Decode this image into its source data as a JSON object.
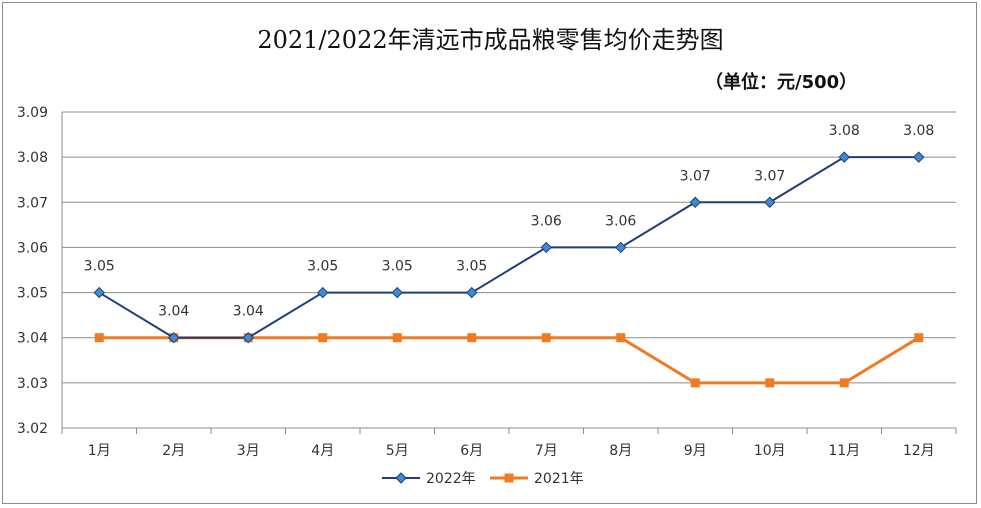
{
  "chart_data": {
    "type": "line",
    "title": "2021/2022年清远市成品粮零售均价走势图",
    "unit_note": "（单位：元/500）",
    "categories": [
      "1月",
      "2月",
      "3月",
      "4月",
      "5月",
      "6月",
      "7月",
      "8月",
      "9月",
      "10月",
      "11月",
      "12月"
    ],
    "yticks": [
      "3.02",
      "3.03",
      "3.04",
      "3.05",
      "3.06",
      "3.07",
      "3.08",
      "3.09"
    ],
    "ylim": [
      3.02,
      3.09
    ],
    "grid": true,
    "legend_position": "bottom",
    "series": [
      {
        "name": "2022年",
        "color": "#1F3D7A",
        "marker": "diamond",
        "marker_color": "#3D8CD0",
        "values": [
          3.05,
          3.04,
          3.04,
          3.05,
          3.05,
          3.05,
          3.06,
          3.06,
          3.07,
          3.07,
          3.08,
          3.08
        ],
        "labels": [
          "3.05",
          "3.04",
          "3.04",
          "3.05",
          "3.05",
          "3.05",
          "3.06",
          "3.06",
          "3.07",
          "3.07",
          "3.08",
          "3.08"
        ]
      },
      {
        "name": "2021年",
        "color": "#F07A22",
        "marker": "square",
        "marker_color": "#F07A22",
        "values": [
          3.04,
          3.04,
          3.04,
          3.04,
          3.04,
          3.04,
          3.04,
          3.04,
          3.03,
          3.03,
          3.03,
          3.04
        ]
      }
    ]
  }
}
